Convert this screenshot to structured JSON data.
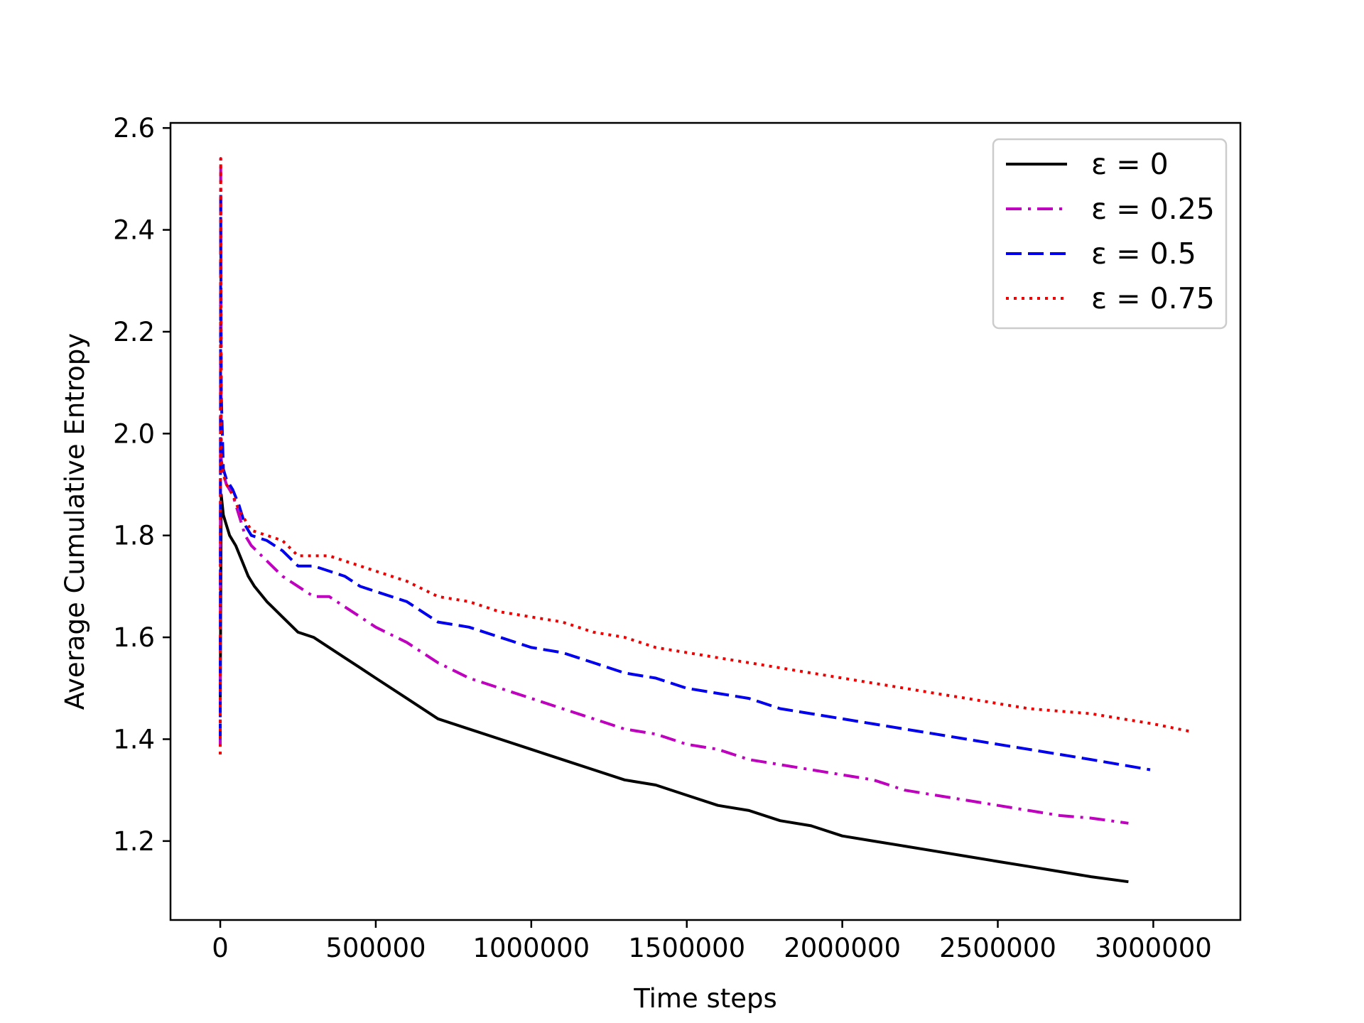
{
  "chart_data": {
    "type": "line",
    "title": "",
    "xlabel": "Time steps",
    "ylabel": "Average Cumulative Entropy",
    "xlim": [
      -160000,
      3280000
    ],
    "ylim": [
      1.045,
      2.61
    ],
    "xticks": [
      0,
      500000,
      1000000,
      1500000,
      2000000,
      2500000,
      3000000
    ],
    "xtick_labels": [
      "0",
      "500000",
      "1000000",
      "1500000",
      "2000000",
      "2500000",
      "3000000"
    ],
    "yticks": [
      1.2,
      1.4,
      1.6,
      1.8,
      2.0,
      2.2,
      2.4,
      2.6
    ],
    "ytick_labels": [
      "1.2",
      "1.4",
      "1.6",
      "1.8",
      "2.0",
      "2.2",
      "2.4",
      "2.6"
    ],
    "grid": false,
    "legend_position": "top-right",
    "series": [
      {
        "name": "0",
        "legend_label": "ε = 0",
        "color": "#000000",
        "style": "solid",
        "x": [
          0,
          3000,
          10000,
          20000,
          30000,
          50000,
          70000,
          90000,
          110000,
          150000,
          200000,
          250000,
          300000,
          350000,
          400000,
          450000,
          500000,
          600000,
          700000,
          800000,
          900000,
          1000000,
          1100000,
          1200000,
          1300000,
          1400000,
          1500000,
          1600000,
          1700000,
          1800000,
          1900000,
          2000000,
          2100000,
          2200000,
          2300000,
          2400000,
          2500000,
          2600000,
          2700000,
          2800000,
          2920000
        ],
        "y": [
          1.46,
          1.88,
          1.84,
          1.82,
          1.8,
          1.78,
          1.75,
          1.72,
          1.7,
          1.67,
          1.64,
          1.61,
          1.6,
          1.58,
          1.56,
          1.54,
          1.52,
          1.48,
          1.44,
          1.42,
          1.4,
          1.38,
          1.36,
          1.34,
          1.32,
          1.31,
          1.29,
          1.27,
          1.26,
          1.24,
          1.23,
          1.21,
          1.2,
          1.19,
          1.18,
          1.17,
          1.16,
          1.15,
          1.14,
          1.13,
          1.12
        ]
      },
      {
        "name": "0.25",
        "legend_label": "ε = 0.25",
        "color": "#bf00bf",
        "style": "dashdot",
        "x": [
          0,
          1500,
          3000,
          10000,
          20000,
          40000,
          60000,
          80000,
          100000,
          150000,
          200000,
          250000,
          300000,
          350000,
          400000,
          450000,
          500000,
          600000,
          700000,
          800000,
          900000,
          1000000,
          1100000,
          1200000,
          1300000,
          1400000,
          1500000,
          1600000,
          1700000,
          1800000,
          1900000,
          2000000,
          2100000,
          2200000,
          2300000,
          2400000,
          2500000,
          2600000,
          2700000,
          2800000,
          2920000
        ],
        "y": [
          1.39,
          2.54,
          1.95,
          1.92,
          1.9,
          1.88,
          1.84,
          1.8,
          1.78,
          1.75,
          1.72,
          1.7,
          1.68,
          1.68,
          1.66,
          1.64,
          1.62,
          1.59,
          1.55,
          1.52,
          1.5,
          1.48,
          1.46,
          1.44,
          1.42,
          1.41,
          1.39,
          1.38,
          1.36,
          1.35,
          1.34,
          1.33,
          1.32,
          1.3,
          1.29,
          1.28,
          1.27,
          1.26,
          1.25,
          1.245,
          1.235
        ]
      },
      {
        "name": "0.5",
        "legend_label": "ε = 0.5",
        "color": "#0000ee",
        "style": "dashed",
        "x": [
          0,
          1500,
          3000,
          10000,
          20000,
          40000,
          60000,
          80000,
          100000,
          150000,
          200000,
          250000,
          300000,
          350000,
          400000,
          450000,
          500000,
          600000,
          700000,
          800000,
          900000,
          1000000,
          1100000,
          1200000,
          1300000,
          1400000,
          1500000,
          1600000,
          1700000,
          1800000,
          1900000,
          2000000,
          2100000,
          2200000,
          2300000,
          2400000,
          2500000,
          2600000,
          2700000,
          2800000,
          2990000
        ],
        "y": [
          1.4,
          2.47,
          2.08,
          1.93,
          1.91,
          1.89,
          1.86,
          1.82,
          1.8,
          1.79,
          1.77,
          1.74,
          1.74,
          1.73,
          1.72,
          1.7,
          1.69,
          1.67,
          1.63,
          1.62,
          1.6,
          1.58,
          1.57,
          1.55,
          1.53,
          1.52,
          1.5,
          1.49,
          1.48,
          1.46,
          1.45,
          1.44,
          1.43,
          1.42,
          1.41,
          1.4,
          1.39,
          1.38,
          1.37,
          1.36,
          1.34
        ]
      },
      {
        "name": "0.75",
        "legend_label": "ε = 0.75",
        "color": "#ee0000",
        "style": "dotted",
        "x": [
          0,
          1500,
          3000,
          10000,
          20000,
          40000,
          60000,
          80000,
          100000,
          150000,
          200000,
          250000,
          300000,
          350000,
          400000,
          450000,
          500000,
          600000,
          700000,
          800000,
          900000,
          1000000,
          1100000,
          1200000,
          1300000,
          1400000,
          1500000,
          1600000,
          1700000,
          1800000,
          1900000,
          2000000,
          2100000,
          2200000,
          2300000,
          2400000,
          2500000,
          2600000,
          2700000,
          2800000,
          2900000,
          3000000,
          3120000
        ],
        "y": [
          1.37,
          2.54,
          1.95,
          1.92,
          1.9,
          1.88,
          1.85,
          1.83,
          1.81,
          1.8,
          1.79,
          1.76,
          1.76,
          1.76,
          1.75,
          1.74,
          1.73,
          1.71,
          1.68,
          1.67,
          1.65,
          1.64,
          1.63,
          1.61,
          1.6,
          1.58,
          1.57,
          1.56,
          1.55,
          1.54,
          1.53,
          1.52,
          1.51,
          1.5,
          1.49,
          1.48,
          1.47,
          1.46,
          1.455,
          1.45,
          1.44,
          1.43,
          1.415
        ]
      }
    ]
  }
}
